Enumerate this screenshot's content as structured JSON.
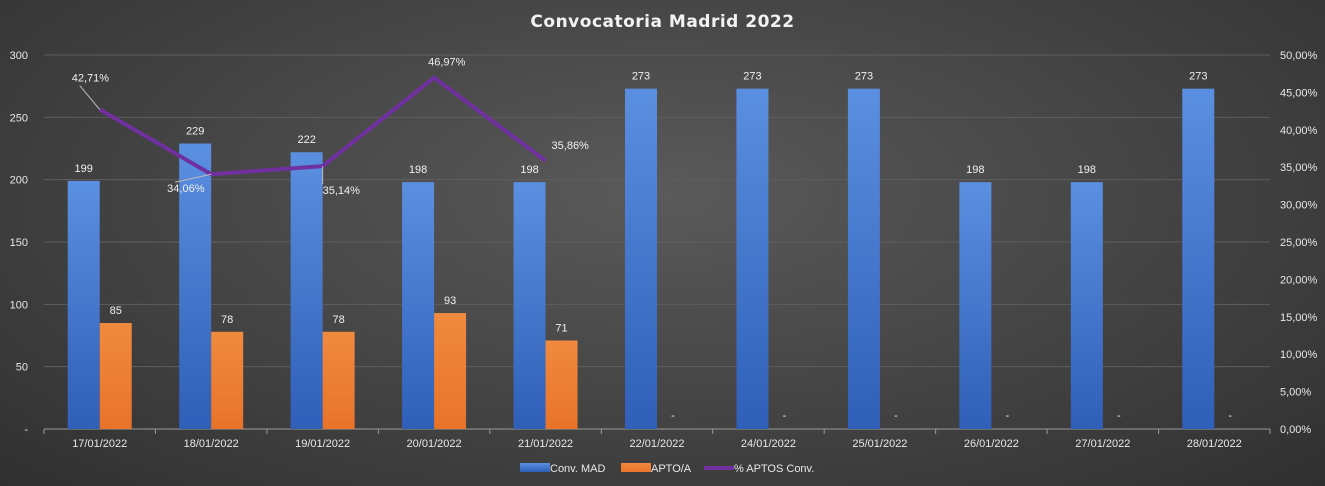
{
  "chart_data": {
    "type": "bar",
    "title": "Convocatoria Madrid 2022",
    "categories": [
      "17/01/2022",
      "18/01/2022",
      "19/01/2022",
      "20/01/2022",
      "21/01/2022",
      "22/01/2022",
      "24/01/2022",
      "25/01/2022",
      "26/01/2022",
      "27/01/2022",
      "28/01/2022"
    ],
    "series": [
      {
        "name": "Conv. MAD",
        "type": "bar",
        "axis": "left",
        "color": "#4a7fd4",
        "values": [
          199,
          229,
          222,
          198,
          198,
          273,
          273,
          273,
          198,
          198,
          273
        ],
        "labels": [
          "199",
          "229",
          "222",
          "198",
          "198",
          "273",
          "273",
          "273",
          "198",
          "198",
          "273"
        ]
      },
      {
        "name": "APTO/A",
        "type": "bar",
        "axis": "left",
        "color": "#ed7d31",
        "values": [
          85,
          78,
          78,
          93,
          71,
          null,
          null,
          null,
          null,
          null,
          null
        ],
        "labels": [
          "85",
          "78",
          "78",
          "93",
          "71",
          "-",
          "-",
          "-",
          "-",
          "-",
          "-"
        ]
      },
      {
        "name": "% APTOS Conv.",
        "type": "line",
        "axis": "right",
        "color": "#7030a0",
        "values": [
          42.71,
          34.06,
          35.14,
          46.97,
          35.86,
          null,
          null,
          null,
          null,
          null,
          null
        ],
        "labels": [
          "42,71%",
          "34,06%",
          "35,14%",
          "46,97%",
          "35,86%"
        ]
      }
    ],
    "y_left": {
      "ylim": [
        0,
        300
      ],
      "ticks": [
        0,
        50,
        100,
        150,
        200,
        250,
        300
      ],
      "tick_labels": [
        "-",
        "50",
        "100",
        "150",
        "200",
        "250",
        "300"
      ]
    },
    "y_right": {
      "ylim": [
        0,
        50
      ],
      "ticks": [
        0,
        5,
        10,
        15,
        20,
        25,
        30,
        35,
        40,
        45,
        50
      ],
      "tick_labels": [
        "0,00%",
        "5,00%",
        "10,00%",
        "15,00%",
        "20,00%",
        "25,00%",
        "30,00%",
        "35,00%",
        "40,00%",
        "45,00%",
        "50,00%"
      ]
    },
    "grid": true,
    "legend_position": "bottom"
  }
}
